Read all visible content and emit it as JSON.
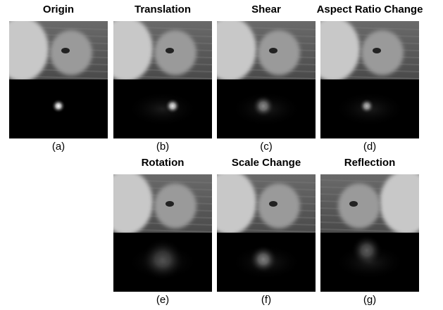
{
  "panels": [
    {
      "title": "Origin",
      "caption": "(a)"
    },
    {
      "title": "Translation",
      "caption": "(b)"
    },
    {
      "title": "Shear",
      "caption": "(c)"
    },
    {
      "title": "Aspect Ratio Change",
      "caption": "(d)"
    },
    {
      "title": "Rotation",
      "caption": "(e)"
    },
    {
      "title": "Scale Change",
      "caption": "(f)"
    },
    {
      "title": "Reflection",
      "caption": "(g)"
    }
  ]
}
